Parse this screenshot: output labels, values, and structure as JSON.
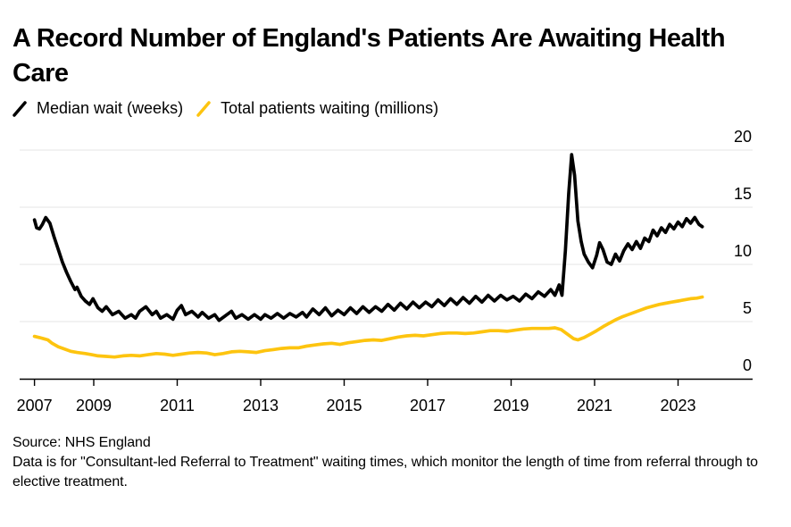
{
  "header": {
    "title": "A Record Number of England's Patients Are Awaiting Health Care"
  },
  "legend": {
    "items": [
      {
        "label": "Median wait (weeks)",
        "color": "#000000"
      },
      {
        "label": "Total patients waiting (millions)",
        "color": "#FDC40F"
      }
    ]
  },
  "footer": {
    "source": "Source: NHS England",
    "note": "Data is for \"Consultant-led Referral to Treatment\" waiting times, which monitor the length of time from referral through to elective treatment."
  },
  "chart_data": {
    "type": "line",
    "title": "A Record Number of England's Patients Are Awaiting Health Care",
    "xlabel": "",
    "ylabel": "",
    "x_tick_labels": [
      "2007",
      "2009",
      "2011",
      "2013",
      "2015",
      "2017",
      "2019",
      "2021",
      "2023"
    ],
    "y_ticks": [
      0,
      5,
      10,
      15,
      20
    ],
    "ylim": [
      0,
      20
    ],
    "y_axis_side": "right",
    "grid": "horizontal",
    "grid_color": "#E5E5E5",
    "axis_color": "#000000",
    "x_start_year": 2007.58,
    "x_end_year": 2023.58,
    "legend_position": "top-left",
    "series": [
      {
        "name": "Median wait (weeks)",
        "color": "#000000",
        "unit": "weeks",
        "points": [
          [
            2007.58,
            13.9
          ],
          [
            2007.63,
            13.2
          ],
          [
            2007.7,
            13.1
          ],
          [
            2007.77,
            13.5
          ],
          [
            2007.85,
            14.1
          ],
          [
            2007.95,
            13.6
          ],
          [
            2008.05,
            12.4
          ],
          [
            2008.15,
            11.3
          ],
          [
            2008.25,
            10.2
          ],
          [
            2008.35,
            9.3
          ],
          [
            2008.45,
            8.5
          ],
          [
            2008.55,
            7.8
          ],
          [
            2008.6,
            8.0
          ],
          [
            2008.7,
            7.2
          ],
          [
            2008.8,
            6.8
          ],
          [
            2008.9,
            6.5
          ],
          [
            2008.98,
            7.0
          ],
          [
            2009.1,
            6.2
          ],
          [
            2009.2,
            5.9
          ],
          [
            2009.3,
            6.3
          ],
          [
            2009.45,
            5.6
          ],
          [
            2009.6,
            5.9
          ],
          [
            2009.75,
            5.3
          ],
          [
            2009.9,
            5.6
          ],
          [
            2010.0,
            5.3
          ],
          [
            2010.1,
            5.9
          ],
          [
            2010.25,
            6.3
          ],
          [
            2010.4,
            5.6
          ],
          [
            2010.5,
            5.9
          ],
          [
            2010.6,
            5.3
          ],
          [
            2010.75,
            5.6
          ],
          [
            2010.9,
            5.2
          ],
          [
            2011.0,
            6.0
          ],
          [
            2011.1,
            6.4
          ],
          [
            2011.2,
            5.6
          ],
          [
            2011.35,
            5.9
          ],
          [
            2011.5,
            5.4
          ],
          [
            2011.6,
            5.8
          ],
          [
            2011.75,
            5.3
          ],
          [
            2011.9,
            5.6
          ],
          [
            2012.0,
            5.1
          ],
          [
            2012.15,
            5.5
          ],
          [
            2012.3,
            5.9
          ],
          [
            2012.4,
            5.3
          ],
          [
            2012.55,
            5.6
          ],
          [
            2012.7,
            5.2
          ],
          [
            2012.85,
            5.6
          ],
          [
            2013.0,
            5.2
          ],
          [
            2013.1,
            5.6
          ],
          [
            2013.25,
            5.3
          ],
          [
            2013.4,
            5.7
          ],
          [
            2013.55,
            5.3
          ],
          [
            2013.7,
            5.7
          ],
          [
            2013.85,
            5.4
          ],
          [
            2014.0,
            5.8
          ],
          [
            2014.1,
            5.4
          ],
          [
            2014.25,
            6.1
          ],
          [
            2014.4,
            5.6
          ],
          [
            2014.55,
            6.2
          ],
          [
            2014.7,
            5.5
          ],
          [
            2014.85,
            6.0
          ],
          [
            2015.0,
            5.6
          ],
          [
            2015.15,
            6.2
          ],
          [
            2015.3,
            5.7
          ],
          [
            2015.45,
            6.3
          ],
          [
            2015.6,
            5.8
          ],
          [
            2015.75,
            6.3
          ],
          [
            2015.9,
            5.9
          ],
          [
            2016.05,
            6.5
          ],
          [
            2016.2,
            6.0
          ],
          [
            2016.35,
            6.6
          ],
          [
            2016.5,
            6.1
          ],
          [
            2016.65,
            6.7
          ],
          [
            2016.8,
            6.2
          ],
          [
            2016.95,
            6.7
          ],
          [
            2017.1,
            6.3
          ],
          [
            2017.25,
            6.9
          ],
          [
            2017.4,
            6.4
          ],
          [
            2017.55,
            7.0
          ],
          [
            2017.7,
            6.5
          ],
          [
            2017.85,
            7.1
          ],
          [
            2018.0,
            6.6
          ],
          [
            2018.15,
            7.2
          ],
          [
            2018.3,
            6.7
          ],
          [
            2018.45,
            7.3
          ],
          [
            2018.6,
            6.8
          ],
          [
            2018.75,
            7.3
          ],
          [
            2018.9,
            6.9
          ],
          [
            2019.05,
            7.2
          ],
          [
            2019.2,
            6.8
          ],
          [
            2019.35,
            7.4
          ],
          [
            2019.5,
            7.0
          ],
          [
            2019.65,
            7.6
          ],
          [
            2019.8,
            7.2
          ],
          [
            2019.95,
            7.8
          ],
          [
            2020.05,
            7.3
          ],
          [
            2020.15,
            8.2
          ],
          [
            2020.22,
            7.3
          ],
          [
            2020.3,
            11.2
          ],
          [
            2020.38,
            16.2
          ],
          [
            2020.45,
            19.6
          ],
          [
            2020.52,
            17.8
          ],
          [
            2020.6,
            13.8
          ],
          [
            2020.68,
            12.0
          ],
          [
            2020.75,
            10.9
          ],
          [
            2020.85,
            10.2
          ],
          [
            2020.95,
            9.7
          ],
          [
            2021.05,
            10.8
          ],
          [
            2021.12,
            11.9
          ],
          [
            2021.2,
            11.3
          ],
          [
            2021.3,
            10.2
          ],
          [
            2021.4,
            10.0
          ],
          [
            2021.5,
            10.9
          ],
          [
            2021.6,
            10.3
          ],
          [
            2021.7,
            11.2
          ],
          [
            2021.8,
            11.8
          ],
          [
            2021.9,
            11.3
          ],
          [
            2022.0,
            12.0
          ],
          [
            2022.1,
            11.4
          ],
          [
            2022.2,
            12.3
          ],
          [
            2022.3,
            12.0
          ],
          [
            2022.4,
            13.0
          ],
          [
            2022.5,
            12.5
          ],
          [
            2022.6,
            13.2
          ],
          [
            2022.7,
            12.8
          ],
          [
            2022.8,
            13.5
          ],
          [
            2022.9,
            13.1
          ],
          [
            2023.0,
            13.7
          ],
          [
            2023.1,
            13.3
          ],
          [
            2023.2,
            14.0
          ],
          [
            2023.3,
            13.6
          ],
          [
            2023.4,
            14.1
          ],
          [
            2023.5,
            13.5
          ],
          [
            2023.58,
            13.3
          ]
        ]
      },
      {
        "name": "Total patients waiting (millions)",
        "color": "#FDC40F",
        "unit": "millions",
        "points": [
          [
            2007.58,
            3.7
          ],
          [
            2007.7,
            3.6
          ],
          [
            2007.8,
            3.5
          ],
          [
            2007.9,
            3.4
          ],
          [
            2008.0,
            3.1
          ],
          [
            2008.15,
            2.8
          ],
          [
            2008.3,
            2.6
          ],
          [
            2008.45,
            2.4
          ],
          [
            2008.6,
            2.3
          ],
          [
            2008.8,
            2.2
          ],
          [
            2008.95,
            2.1
          ],
          [
            2009.1,
            2.0
          ],
          [
            2009.3,
            1.95
          ],
          [
            2009.5,
            1.9
          ],
          [
            2009.7,
            2.0
          ],
          [
            2009.9,
            2.05
          ],
          [
            2010.1,
            2.0
          ],
          [
            2010.3,
            2.1
          ],
          [
            2010.5,
            2.2
          ],
          [
            2010.7,
            2.15
          ],
          [
            2010.9,
            2.05
          ],
          [
            2011.1,
            2.15
          ],
          [
            2011.3,
            2.25
          ],
          [
            2011.5,
            2.3
          ],
          [
            2011.7,
            2.25
          ],
          [
            2011.9,
            2.1
          ],
          [
            2012.1,
            2.2
          ],
          [
            2012.3,
            2.35
          ],
          [
            2012.5,
            2.4
          ],
          [
            2012.7,
            2.35
          ],
          [
            2012.9,
            2.3
          ],
          [
            2013.1,
            2.45
          ],
          [
            2013.3,
            2.55
          ],
          [
            2013.5,
            2.65
          ],
          [
            2013.7,
            2.7
          ],
          [
            2013.9,
            2.7
          ],
          [
            2014.1,
            2.85
          ],
          [
            2014.3,
            2.95
          ],
          [
            2014.5,
            3.05
          ],
          [
            2014.7,
            3.1
          ],
          [
            2014.9,
            3.0
          ],
          [
            2015.1,
            3.15
          ],
          [
            2015.3,
            3.25
          ],
          [
            2015.5,
            3.35
          ],
          [
            2015.7,
            3.4
          ],
          [
            2015.9,
            3.35
          ],
          [
            2016.1,
            3.5
          ],
          [
            2016.3,
            3.65
          ],
          [
            2016.5,
            3.75
          ],
          [
            2016.7,
            3.8
          ],
          [
            2016.9,
            3.75
          ],
          [
            2017.1,
            3.85
          ],
          [
            2017.3,
            3.95
          ],
          [
            2017.5,
            4.0
          ],
          [
            2017.7,
            4.0
          ],
          [
            2017.9,
            3.95
          ],
          [
            2018.1,
            4.0
          ],
          [
            2018.3,
            4.1
          ],
          [
            2018.5,
            4.2
          ],
          [
            2018.7,
            4.2
          ],
          [
            2018.9,
            4.15
          ],
          [
            2019.1,
            4.25
          ],
          [
            2019.3,
            4.35
          ],
          [
            2019.5,
            4.4
          ],
          [
            2019.7,
            4.4
          ],
          [
            2019.9,
            4.4
          ],
          [
            2020.05,
            4.45
          ],
          [
            2020.2,
            4.3
          ],
          [
            2020.35,
            3.9
          ],
          [
            2020.5,
            3.5
          ],
          [
            2020.6,
            3.4
          ],
          [
            2020.75,
            3.6
          ],
          [
            2020.9,
            3.9
          ],
          [
            2021.05,
            4.2
          ],
          [
            2021.2,
            4.55
          ],
          [
            2021.35,
            4.85
          ],
          [
            2021.5,
            5.15
          ],
          [
            2021.65,
            5.4
          ],
          [
            2021.8,
            5.6
          ],
          [
            2021.95,
            5.8
          ],
          [
            2022.1,
            6.0
          ],
          [
            2022.25,
            6.2
          ],
          [
            2022.4,
            6.35
          ],
          [
            2022.55,
            6.5
          ],
          [
            2022.7,
            6.6
          ],
          [
            2022.85,
            6.7
          ],
          [
            2023.0,
            6.8
          ],
          [
            2023.15,
            6.9
          ],
          [
            2023.3,
            7.0
          ],
          [
            2023.45,
            7.05
          ],
          [
            2023.58,
            7.15
          ]
        ]
      }
    ]
  }
}
